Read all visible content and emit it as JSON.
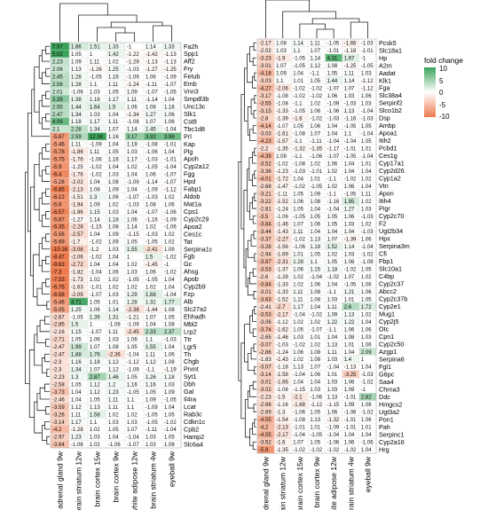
{
  "chart_data": [
    {
      "type": "heatmap",
      "title": "",
      "columns": [
        "adrenal gland 9w",
        "brain striatum 12w",
        "brain cortex 15w",
        "brain cortex 9w",
        "white adipose 12w",
        "brain striatum 4w",
        "eyeball 9w"
      ],
      "rows": [
        "Fa2h",
        "Spp1",
        "Aff2",
        "Fry",
        "Fetub",
        "Emb",
        "Vnn3",
        "Smpdl3b",
        "Unc13c",
        "Slk1",
        "Cst8",
        "Tbc1d8",
        "Prl",
        "Kap",
        "Plg",
        "Apoh",
        "Cyp2a12",
        "Fgg",
        "Hpd",
        "Fabp1",
        "Aldob",
        "Mat1a",
        "Cps1",
        "Cyp2c29",
        "Apoa2",
        "Ces1c",
        "Tat",
        "Serpina1c",
        "Fgb",
        "Gc",
        "Ahsg",
        "Apob",
        "Cyp2b9",
        "Fzp",
        "Alb",
        "Slc27a2",
        "Ehhadh",
        "Mbl2",
        "Lrp2",
        "Ttr",
        "Lgr5",
        "Th",
        "Chgb",
        "Pnmt",
        "Syt1",
        "Dbh",
        "Gal",
        "Il4ra",
        "Lcat",
        "Rab3c",
        "Cdkn1c",
        "Cpb2",
        "Hamp2",
        "Slc6a4"
      ],
      "values": [
        [
          7.57,
          1.86,
          1.51,
          1.33,
          -1,
          1.14,
          1.33
        ],
        [
          5.02,
          1.05,
          1,
          1.42,
          -1.22,
          -1.42,
          -1.13
        ],
        [
          2.23,
          1.09,
          1.11,
          1.02,
          -1.29,
          -1.13,
          -1.13
        ],
        [
          2.06,
          1.13,
          -1.26,
          1.25,
          -1.03,
          -1.27,
          -1.25
        ],
        [
          2.45,
          1.28,
          -1.05,
          1.16,
          -1.09,
          1.06,
          -1.09
        ],
        [
          2.56,
          1.28,
          1.1,
          1.11,
          -1.24,
          -1.11,
          -1.07
        ],
        [
          2.01,
          -1.06,
          1.03,
          1.05,
          1.09,
          -1.07,
          -1.05
        ],
        [
          3.39,
          1.38,
          1.16,
          1.17,
          1.11,
          -1.14,
          1.04
        ],
        [
          2.55,
          1.44,
          1.64,
          1.5,
          1.06,
          1.08,
          1.16
        ],
        [
          2.47,
          1.34,
          1.03,
          1.04,
          -1.34,
          1.27,
          1.06
        ],
        [
          4.06,
          1.18,
          1.17,
          1.11,
          -1.08,
          1.07,
          1.06
        ],
        [
          2.1,
          2.28,
          1.34,
          1.07,
          1.14,
          1.45,
          -1.04
        ],
        [
          -5.67,
          2.59,
          12.38,
          1.16,
          3.17,
          3.92,
          3.96
        ],
        [
          -5.46,
          1.11,
          -1.09,
          1.04,
          1.19,
          -1.08,
          -1.01
        ],
        [
          -5.78,
          -1.86,
          1.11,
          1.05,
          1.03,
          -1.06,
          1.04
        ],
        [
          -5.75,
          -1.76,
          -1.06,
          1.16,
          1.17,
          -1.03,
          -1.01
        ],
        [
          -5.9,
          -1.25,
          -1.02,
          1.04,
          1.02,
          -1.05,
          -1.04
        ],
        [
          -6.4,
          -1.76,
          -1.02,
          1.03,
          1.04,
          1.06,
          -1.07
        ],
        [
          -5.28,
          -2.02,
          1.04,
          1.08,
          -1.09,
          -1.14,
          -1.07
        ],
        [
          -6.85,
          -2.13,
          1.08,
          1.09,
          1.04,
          -1.09,
          -1.12
        ],
        [
          -6.12,
          -1.51,
          1.3,
          1.06,
          -1.07,
          -1.03,
          1.02
        ],
        [
          -5.9,
          -1.94,
          1.09,
          1.02,
          -1.03,
          1.08,
          1.06
        ],
        [
          -6.57,
          -1.96,
          1.15,
          1.03,
          1.04,
          -1.07,
          -1.06
        ],
        [
          -5.87,
          -1.27,
          1.14,
          1.18,
          1.06,
          -1.16,
          -1.09
        ],
        [
          -6.35,
          -2.28,
          -1.15,
          1.08,
          1.14,
          1.02,
          -1.06
        ],
        [
          -5.56,
          -2.57,
          1.04,
          1.09,
          -1.15,
          -1.03,
          1.02
        ],
        [
          -5.69,
          -1.7,
          -1.02,
          1.09,
          1.05,
          -1.05,
          1.02
        ],
        [
          -10.16,
          -3.08,
          -1.2,
          1.03,
          1.55,
          -2.41,
          1.09
        ],
        [
          -8.47,
          -2.06,
          -1.02,
          1.04,
          1,
          1.5,
          -1.02
        ],
        [
          -9.63,
          -2.72,
          1.04,
          1.04,
          1.02,
          -1.45,
          -1
        ],
        [
          -7.3,
          -1.82,
          -1.04,
          1.06,
          1.03,
          1.06,
          -1.02
        ],
        [
          -7.53,
          -1.73,
          1.02,
          1.02,
          -1.05,
          -1.05,
          1.04
        ],
        [
          -6.76,
          -1.63,
          -1.01,
          1.02,
          1.02,
          1.02,
          1.04
        ],
        [
          -6.58,
          -2.09,
          -1.07,
          1.03,
          1.29,
          1.68,
          -1.04
        ],
        [
          -5.46,
          4.71,
          1.05,
          1.01,
          1.28,
          1.32,
          1.77
        ],
        [
          -5.05,
          1.25,
          1.06,
          1.14,
          -2.38,
          -1.44,
          1.08
        ],
        [
          -2.67,
          -1.05,
          1.39,
          1.31,
          -1.21,
          1.07,
          1.05
        ],
        [
          -2.85,
          1.5,
          1,
          -1.08,
          -1.09,
          1.04,
          1.08
        ],
        [
          -2.16,
          1.15,
          -1.07,
          1.11,
          -2.45,
          2.33,
          2.37
        ],
        [
          -2.71,
          1.05,
          1.06,
          1.03,
          1.06,
          1.1,
          -1.03
        ],
        [
          -2.47,
          1.99,
          1.07,
          1.08,
          1.05,
          1.55,
          1.04
        ],
        [
          -2.47,
          1.88,
          1.76,
          -2.36,
          -1.04,
          1.11,
          1.06
        ],
        [
          -2.3,
          1.16,
          1.18,
          1.12,
          -1.12,
          1.12,
          1.08
        ],
        [
          -2.3,
          1.34,
          1.07,
          1.12,
          -1.09,
          -1.1,
          -1.19
        ],
        [
          -2.23,
          1.3,
          2.87,
          1.46,
          1.05,
          1.26,
          1.18
        ],
        [
          -2.58,
          1.05,
          1.12,
          1.2,
          1.16,
          1.16,
          1.03
        ],
        [
          -3.73,
          1.04,
          1.12,
          1.23,
          -1.05,
          1.05,
          1.09
        ],
        [
          -2.46,
          1.04,
          1.05,
          1.11,
          1.1,
          1.09,
          -1.05
        ],
        [
          -3.59,
          1.12,
          1.13,
          1.11,
          1.1,
          -1.09,
          1.04
        ],
        [
          -3.26,
          1.11,
          1.58,
          1.02,
          1.02,
          -1.05,
          1.05
        ],
        [
          -3.14,
          1.17,
          1.1,
          1.03,
          1.03,
          -1.05,
          -1.02
        ],
        [
          -4.2,
          -1.28,
          1.02,
          1.05,
          1.07,
          -1.11,
          -1.04
        ],
        [
          -2.97,
          1.23,
          1.03,
          1.04,
          -1.04,
          1.03,
          1.05
        ],
        [
          -3.64,
          -1.06,
          1.02,
          -1.06,
          -1.07,
          1.03,
          1.08
        ]
      ]
    },
    {
      "type": "heatmap",
      "title": "",
      "columns": [
        "adrenal gland 9w",
        "brain striatum 12w",
        "brain cortex 15w",
        "brain cortex 9w",
        "white adipose 12w",
        "brain striatum 4w",
        "eyeball 9w"
      ],
      "rows": [
        "Pcsk5",
        "Slc18a1",
        "Hp",
        "A2m",
        "Aadat",
        "Klk1",
        "Fga",
        "Slc38a4",
        "Serpinf2",
        "Slco1b2",
        "Dsp",
        "Ambp",
        "Apoa1",
        "Itih2",
        "Pcbd1",
        "Ces1g",
        "Cyp17a1",
        "Cyp2d26",
        "Cyp1a2",
        "Vtn",
        "Apon",
        "Itih4",
        "Pigr",
        "Cyp2c70",
        "F2",
        "Ugt2b34",
        "Hpx",
        "Serpina3m",
        "Cfi",
        "Fbp1",
        "Slc10a1",
        "C4bp",
        "Cyp2c37",
        "Abcc2",
        "Cyp2c37b",
        "Cyp2e1",
        "Mug1",
        "Cyp2j5",
        "Otc",
        "Cpn1",
        "Cyp2c50",
        "Azgp1",
        "Serpina6",
        "Fgl1",
        "G6pc",
        "Saa4",
        "Chrna3",
        "Ddc",
        "Hmgcs2",
        "Ugt3a2",
        "Pon1",
        "Pah",
        "Serpinc1",
        "Cyp2a16",
        "Hrg"
      ],
      "values": [
        [
          -2.17,
          1.08,
          1.14,
          1.11,
          -1.05,
          -1.66,
          -1.03
        ],
        [
          -2.02,
          1.03,
          1.1,
          1.07,
          -1.01,
          -1.18,
          -1.01
        ],
        [
          -3.23,
          -1.9,
          -1.05,
          1.14,
          4.31,
          1.67,
          -1
        ],
        [
          -3.01,
          1.07,
          -1.05,
          1.12,
          1.08,
          -1.25,
          -1.05
        ],
        [
          -4.18,
          1.09,
          1.04,
          -1.1,
          1.05,
          1.11,
          1.03
        ],
        [
          -3.03,
          1.1,
          1.01,
          1.05,
          1.44,
          1.14,
          -1.12
        ],
        [
          -4.27,
          -2.06,
          -1.02,
          -1.02,
          -1.07,
          1.07,
          -1.12
        ],
        [
          -3.17,
          -1.08,
          -1.02,
          -1.02,
          1.06,
          1.03,
          1.06
        ],
        [
          -3.55,
          -1.08,
          -1.1,
          1.02,
          -1.09,
          -1.03,
          1.03
        ],
        [
          -3.15,
          -1.33,
          -1.05,
          1.06,
          -1.06,
          1.13,
          -1.04
        ],
        [
          -2.8,
          -1.39,
          -1.6,
          -1.02,
          -1.03,
          -1.16,
          -1.03
        ],
        [
          -4.14,
          -1.07,
          1.05,
          1.06,
          1.04,
          -1.05,
          1.05
        ],
        [
          -3.03,
          -1.61,
          -1.08,
          1.07,
          1.04,
          1.1,
          -1.04
        ],
        [
          -4.23,
          -1.57,
          -1.1,
          -1.11,
          -1.04,
          -1.04,
          1.05
        ],
        [
          -2.2,
          -1.35,
          -1.32,
          -1.35,
          -1.17,
          -1.01,
          1.01
        ],
        [
          -4.39,
          1.09,
          -1.1,
          -1.06,
          -1.07,
          -1.05,
          -1.04
        ],
        [
          -3.52,
          -1.02,
          -1.08,
          1.02,
          1.06,
          1.04,
          1.01
        ],
        [
          -3.36,
          -1.23,
          -1.03,
          -1.01,
          1.02,
          1.04,
          1.04
        ],
        [
          -4.01,
          -1.72,
          1.04,
          1.01,
          -1.1,
          -1.02,
          1.02
        ],
        [
          -2.68,
          -1.47,
          -1.02,
          -1.05,
          1.02,
          1.06,
          1.04
        ],
        [
          -3.21,
          -1.11,
          1.05,
          1.09,
          -1.1,
          -1.05,
          1.11
        ],
        [
          -3.22,
          -1.52,
          1.06,
          1.08,
          -1.16,
          1.85,
          1.02
        ],
        [
          -2.81,
          -1.24,
          1.05,
          1.04,
          -1.04,
          1.27,
          1.03
        ],
        [
          -3.5,
          -1.06,
          -1.05,
          1.05,
          1.05,
          1.06,
          -1.03
        ],
        [
          -3.84,
          -1.46,
          1.07,
          1.06,
          1.05,
          1.03,
          1.02
        ],
        [
          -3.44,
          -1.43,
          1.11,
          1.04,
          1.04,
          1.04,
          -1.03
        ],
        [
          -3.37,
          -2.27,
          -1.02,
          1.13,
          1.07,
          -1.39,
          1.06
        ],
        [
          -3.26,
          -1.56,
          -1.06,
          1.18,
          1.52,
          1.14,
          -1.04
        ],
        [
          -2.94,
          -1.69,
          1.01,
          1.05,
          1.02,
          1.03,
          -1.02
        ],
        [
          -3.87,
          -2.31,
          1.28,
          1.1,
          1.05,
          1.06,
          -1.08
        ],
        [
          -3.53,
          -1.37,
          1.06,
          1.15,
          1.18,
          -1.02,
          1.05
        ],
        [
          -2.6,
          -1.28,
          1.02,
          -1.04,
          -1.02,
          1.07,
          1.02
        ],
        [
          -3.84,
          -1.33,
          1.02,
          1.06,
          1.04,
          -1.05,
          1.06
        ],
        [
          -3.01,
          -1.33,
          1.11,
          1.08,
          -1.1,
          1.21,
          1.06
        ],
        [
          -3.63,
          -1.52,
          1.11,
          1.08,
          1.03,
          1.01,
          1.05
        ],
        [
          -2.41,
          -2.7,
          1.17,
          1.04,
          1.11,
          2.6,
          1.72
        ],
        [
          -3.53,
          -2.17,
          -1.04,
          -1.02,
          1.09,
          1.13,
          1.02
        ],
        [
          -3.06,
          -1.12,
          1.02,
          1.02,
          1.22,
          1.22,
          1.04
        ],
        [
          -3.74,
          -1.62,
          1.05,
          -1.07,
          -1.1,
          1.06,
          1.06
        ],
        [
          -2.65,
          -1.46,
          1.03,
          1.01,
          1.04,
          1.08,
          1.03
        ],
        [
          -3.07,
          -1.03,
          -1.02,
          1.02,
          1.13,
          1.01,
          1.06
        ],
        [
          -2.86,
          -1.24,
          1.06,
          1.08,
          1.11,
          1.04,
          2.09
        ],
        [
          -1.83,
          -1.43,
          1.02,
          1.08,
          1.03,
          1.4,
          1
        ],
        [
          -3.07,
          -1.18,
          1.13,
          1.07,
          -1.04,
          -1.13,
          1.04
        ],
        [
          -3.14,
          -1.58,
          -1.04,
          1.06,
          1.01,
          -3.25,
          -1.03
        ],
        [
          -3.01,
          -1.66,
          1.04,
          1.04,
          1.03,
          1.06,
          -1.02
        ],
        [
          -3.02,
          -1.08,
          -1.15,
          1.03,
          1.03,
          1.09,
          -1
        ],
        [
          -2.23,
          -1.5,
          -2.1,
          -1.06,
          1.13,
          -1.01,
          2.82
        ],
        [
          -2.66,
          -1.16,
          -1.68,
          -1.12,
          -1.15,
          1.09,
          1.08
        ],
        [
          -2.69,
          -1.3,
          -1.06,
          1.05,
          1.06,
          -1.06,
          -1.02
        ],
        [
          -4.55,
          -1.54,
          -1.08,
          1.13,
          -1.32,
          -1.01,
          1.06
        ],
        [
          -4.2,
          -2.13,
          -1.01,
          1.01,
          -1.09,
          -1.01,
          1.01
        ],
        [
          -4.55,
          -2.17,
          -1.04,
          -1.05,
          -1.04,
          1.04,
          1.04
        ],
        [
          -3.52,
          -1.6,
          1.07,
          1.05,
          -1.06,
          1.06,
          -1.06
        ],
        [
          -5.8,
          -1.35,
          -1.02,
          -1.02,
          -1.02,
          -1.02,
          1.04
        ]
      ]
    }
  ],
  "legend": {
    "title": "fold change",
    "ticks": [
      "10",
      "5",
      "0",
      "-5",
      "-10"
    ],
    "colors": {
      "high": "#3aa35a",
      "mid": "#ffffff",
      "low": "#ef7a4c"
    }
  }
}
